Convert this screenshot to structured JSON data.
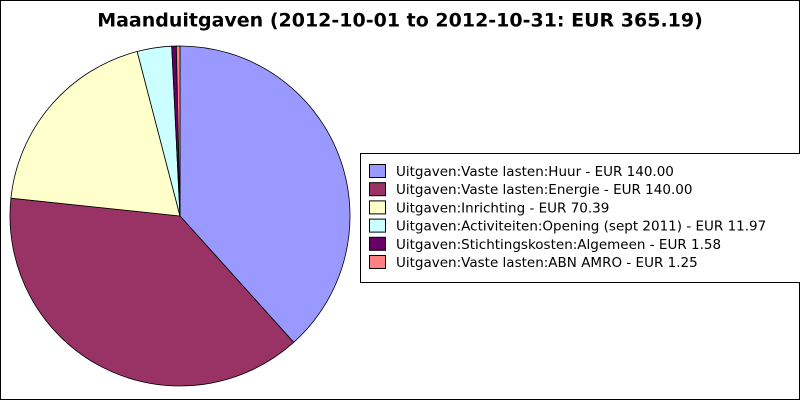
{
  "chart_data": {
    "type": "pie",
    "title": "Maanduitgaven (2012-10-01 to 2012-10-31: EUR 365.19)",
    "categories": [
      "Uitgaven:Vaste lasten:Huur - EUR 140.00",
      "Uitgaven:Vaste lasten:Energie - EUR 140.00",
      "Uitgaven:Inrichting - EUR 70.39",
      "Uitgaven:Activiteiten:Opening (sept 2011) - EUR 11.97",
      "Uitgaven:Stichtingskosten:Algemeen - EUR 1.58",
      "Uitgaven:Vaste lasten:ABN AMRO - EUR 1.25"
    ],
    "values": [
      140.0,
      140.0,
      70.39,
      11.97,
      1.58,
      1.25
    ],
    "colors": [
      "#9999ff",
      "#993366",
      "#ffffcc",
      "#ccffff",
      "#660066",
      "#ff8080"
    ],
    "legend": "right"
  }
}
